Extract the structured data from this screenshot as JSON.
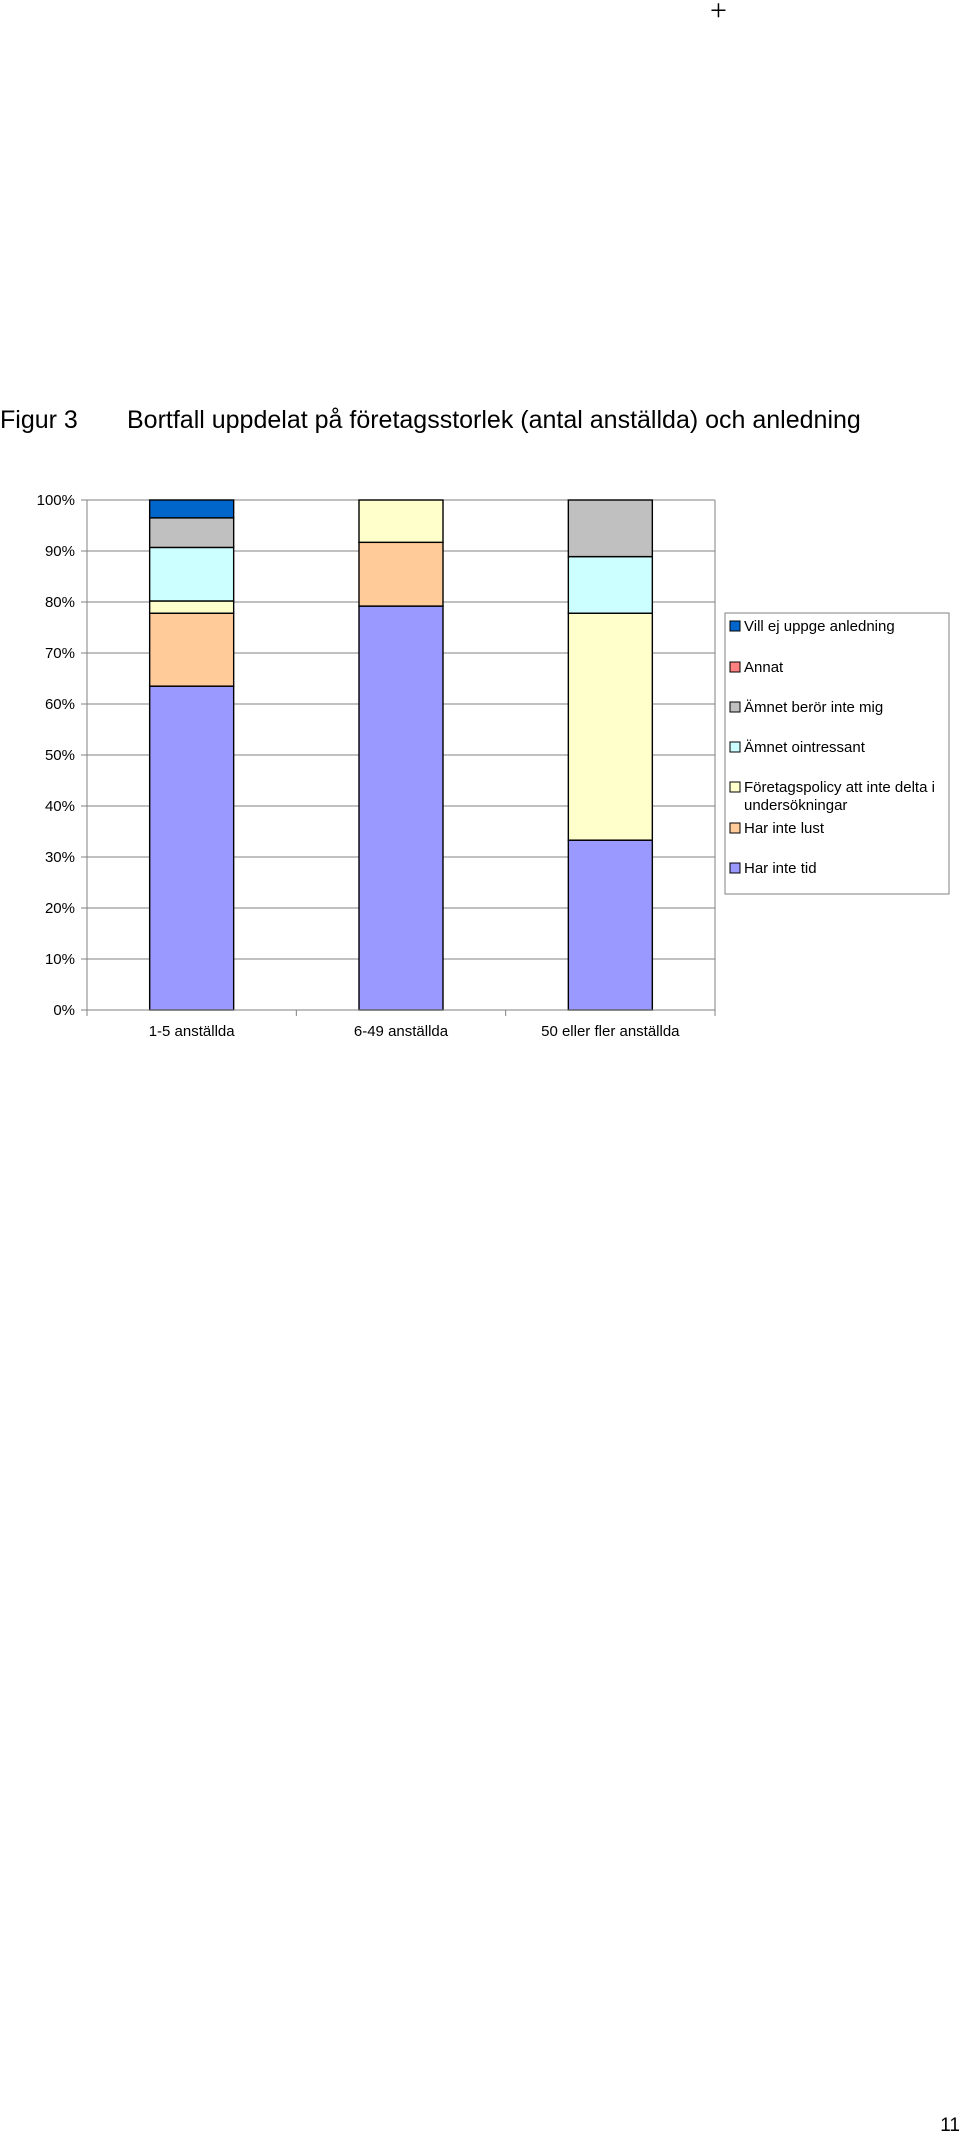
{
  "page": {
    "corner_mark": "+",
    "figure_label": "Figur 3",
    "figure_title": "Bortfall uppdelat på företagsstorlek (antal anställda) och anledning",
    "page_number": "11"
  },
  "chart_data": {
    "type": "bar",
    "stacked": true,
    "percent": true,
    "title": "",
    "xlabel": "",
    "ylabel": "",
    "ylim": [
      0,
      100
    ],
    "y_ticks": [
      "0%",
      "10%",
      "20%",
      "30%",
      "40%",
      "50%",
      "60%",
      "70%",
      "80%",
      "90%",
      "100%"
    ],
    "categories": [
      "1-5 anställda",
      "6-49 anställda",
      "50 eller fler anställda"
    ],
    "grid": true,
    "legend_position": "right",
    "series": [
      {
        "name": "Har inte tid",
        "color": "#9999ff",
        "values": [
          63.5,
          79.2,
          33.3
        ]
      },
      {
        "name": "Har inte lust",
        "color": "#ffcc99",
        "values": [
          14.3,
          12.5,
          0
        ]
      },
      {
        "name": "Företagspolicy att inte delta i undersökningar",
        "color": "#ffffcc",
        "values": [
          2.4,
          8.3,
          44.5
        ]
      },
      {
        "name": "Ämnet ointressant",
        "color": "#ccffff",
        "values": [
          10.5,
          0,
          11.1
        ]
      },
      {
        "name": "Ämnet berör inte mig",
        "color": "#c0c0c0",
        "values": [
          5.8,
          0,
          11.1
        ]
      },
      {
        "name": "Annat",
        "color": "#ff8080",
        "values": [
          0,
          0,
          0
        ]
      },
      {
        "name": "Vill ej uppge anledning",
        "color": "#0066cc",
        "values": [
          3.5,
          0,
          0
        ]
      }
    ],
    "legend_lines": [
      [
        "Vill ej uppge anledning"
      ],
      [
        "Annat"
      ],
      [
        "Ämnet berör inte mig"
      ],
      [
        "Ämnet ointressant"
      ],
      [
        "Företagspolicy att inte delta i",
        "undersökningar"
      ],
      [
        "Har inte lust"
      ],
      [
        "Har inte tid"
      ]
    ]
  }
}
